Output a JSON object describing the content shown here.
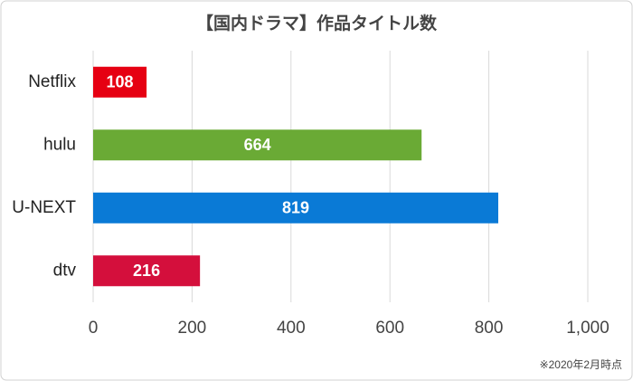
{
  "chart_data": {
    "type": "hbar",
    "title": "【国内ドラマ】作品タイトル数",
    "categories": [
      "Netflix",
      "hulu",
      "U-NEXT",
      "dtv"
    ],
    "values": [
      108,
      664,
      819,
      216
    ],
    "colors": [
      "#e60012",
      "#6aaa35",
      "#0a7ad6",
      "#d40f3c"
    ],
    "xlim": [
      0,
      1000
    ],
    "xticks": [
      0,
      200,
      400,
      600,
      800,
      {
        "value": 1000,
        "label": "1,000"
      }
    ],
    "grid": true,
    "note": "※2020年2月時点"
  }
}
